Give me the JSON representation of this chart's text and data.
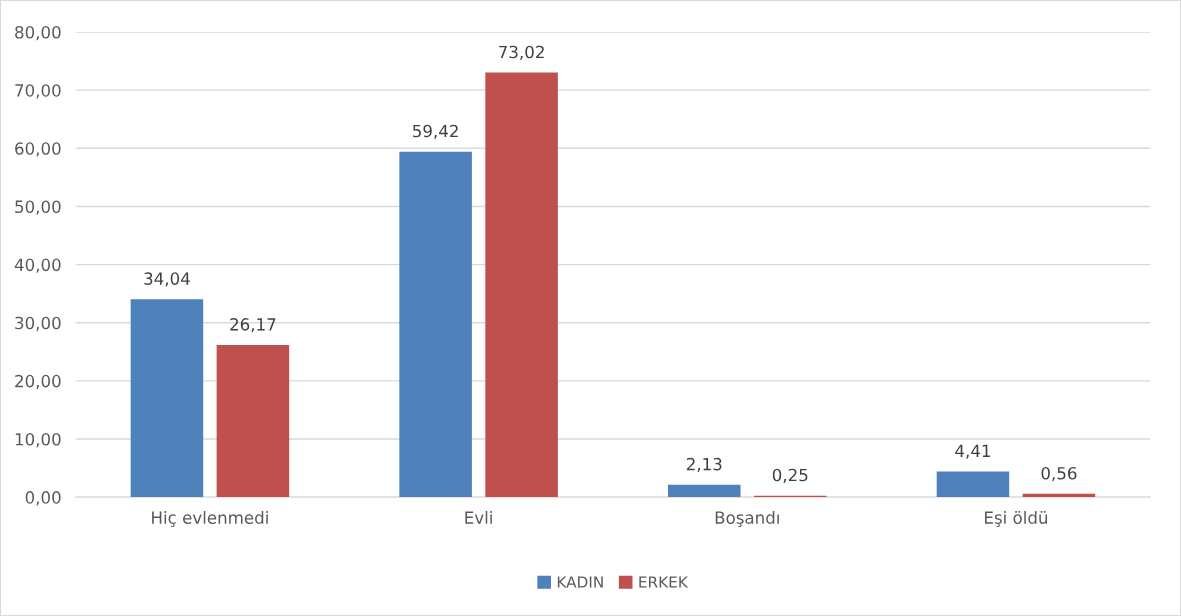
{
  "chart_data": {
    "type": "bar",
    "categories": [
      "Hiç evlenmedi",
      "Evli",
      "Boşandı",
      "Eşi öldü"
    ],
    "series": [
      {
        "name": "KADIN",
        "color": "#4f81bd",
        "values": [
          34.04,
          59.42,
          2.13,
          4.41
        ],
        "value_labels": [
          "34,04",
          "59,42",
          "2,13",
          "4,41"
        ]
      },
      {
        "name": "ERKEK",
        "color": "#c0504d",
        "values": [
          26.17,
          73.02,
          0.25,
          0.56
        ],
        "value_labels": [
          "26,17",
          "73,02",
          "0,25",
          "0,56"
        ]
      }
    ],
    "ylim": [
      0,
      80
    ],
    "yticks": [
      {
        "value": 0,
        "label": "0,00"
      },
      {
        "value": 10,
        "label": "10,00"
      },
      {
        "value": 20,
        "label": "20,00"
      },
      {
        "value": 30,
        "label": "30,00"
      },
      {
        "value": 40,
        "label": "40,00"
      },
      {
        "value": 50,
        "label": "50,00"
      },
      {
        "value": 60,
        "label": "60,00"
      },
      {
        "value": 70,
        "label": "70,00"
      },
      {
        "value": 80,
        "label": "80,00"
      }
    ],
    "grid": "y",
    "legend": "bottom"
  }
}
